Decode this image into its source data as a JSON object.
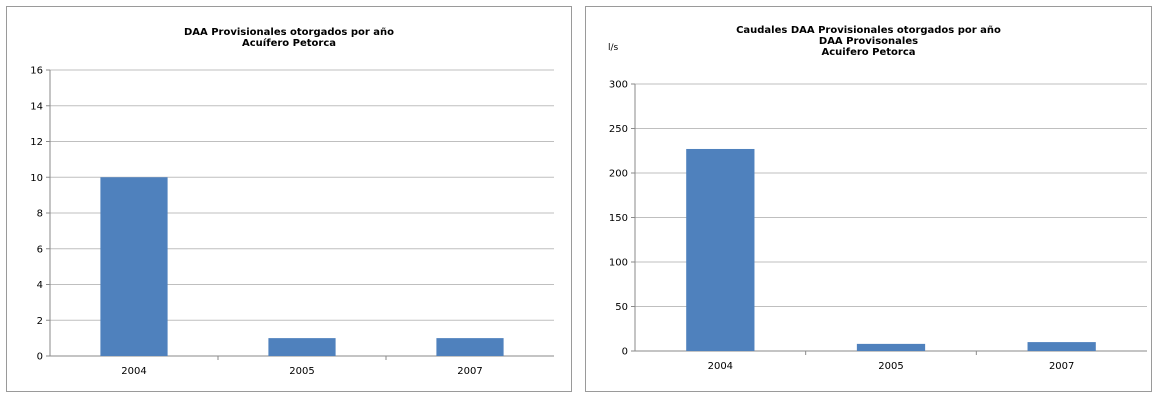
{
  "chart_data": [
    {
      "type": "bar",
      "title": "DAA Provisionales otorgados por año",
      "subtitle": "Acuífero Petorca",
      "ylabel": "",
      "categories": [
        "2004",
        "2005",
        "2007"
      ],
      "values": [
        10,
        1,
        1
      ],
      "ylim": [
        0,
        16
      ],
      "yticks": [
        0,
        2,
        4,
        6,
        8,
        10,
        12,
        14,
        16
      ],
      "grid": true,
      "bar_color": "#4f81bd"
    },
    {
      "type": "bar",
      "title": "Caudales DAA Provisionales otorgados por año",
      "subtitle": "DAA Provisonales",
      "subtitle2": "Acuifero Petorca",
      "ylabel": "l/s",
      "categories": [
        "2004",
        "2005",
        "2007"
      ],
      "values": [
        227,
        8,
        10
      ],
      "ylim": [
        0,
        300
      ],
      "yticks": [
        0,
        50,
        100,
        150,
        200,
        250,
        300
      ],
      "grid": true,
      "bar_color": "#4f81bd"
    }
  ]
}
